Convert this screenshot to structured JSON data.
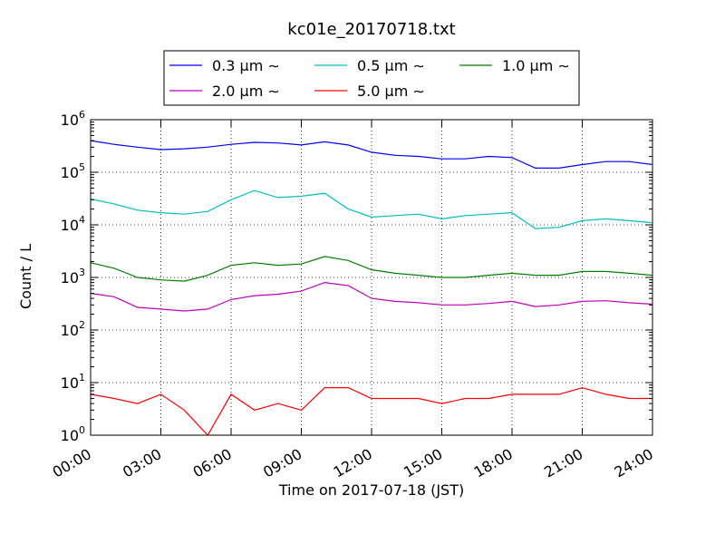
{
  "chart_data": {
    "type": "line",
    "title": "kc01e_20170718.txt",
    "xlabel": "Time on 2017-07-18 (JST)",
    "ylabel": "Count / L",
    "yscale": "log",
    "ylim": [
      1,
      1000000
    ],
    "xlim": [
      "2017-07-18 00:00",
      "2017-07-19 00:00"
    ],
    "grid": true,
    "legend_placement": "top (above plot), 3 columns",
    "x_tick_labels": [
      "00:00",
      "03:00",
      "06:00",
      "09:00",
      "12:00",
      "15:00",
      "18:00",
      "21:00",
      "24:00"
    ],
    "y_tick_labels": [
      {
        "base": "10",
        "exp": "0"
      },
      {
        "base": "10",
        "exp": "1"
      },
      {
        "base": "10",
        "exp": "2"
      },
      {
        "base": "10",
        "exp": "3"
      },
      {
        "base": "10",
        "exp": "4"
      },
      {
        "base": "10",
        "exp": "5"
      },
      {
        "base": "10",
        "exp": "6"
      }
    ],
    "x_hours": [
      0,
      1,
      2,
      3,
      4,
      5,
      6,
      7,
      8,
      9,
      10,
      11,
      12,
      13,
      14,
      15,
      16,
      17,
      18,
      19,
      20,
      21,
      22,
      23,
      24
    ],
    "series": [
      {
        "name": "0.3 μm ∼",
        "color": "#0000ff",
        "values": [
          400000,
          340000,
          300000,
          270000,
          280000,
          300000,
          340000,
          370000,
          360000,
          330000,
          380000,
          330000,
          240000,
          210000,
          200000,
          180000,
          180000,
          200000,
          190000,
          120000,
          120000,
          140000,
          160000,
          160000,
          140000
        ]
      },
      {
        "name": "0.5 μm ∼",
        "color": "#00bfbf",
        "values": [
          31000,
          25000,
          19000,
          17000,
          16000,
          18000,
          30000,
          45000,
          33000,
          35000,
          40000,
          20000,
          14000,
          15000,
          16000,
          13000,
          15000,
          16000,
          17000,
          8500,
          9000,
          12000,
          13000,
          12000,
          11000
        ]
      },
      {
        "name": "1.0 μm ∼",
        "color": "#008000",
        "values": [
          1900,
          1500,
          1000,
          900,
          850,
          1100,
          1700,
          1900,
          1700,
          1800,
          2500,
          2100,
          1400,
          1200,
          1100,
          1000,
          1000,
          1100,
          1200,
          1100,
          1100,
          1300,
          1300,
          1200,
          1100
        ]
      },
      {
        "name": "2.0 μm ∼",
        "color": "#bf00bf",
        "values": [
          500,
          430,
          270,
          250,
          230,
          250,
          380,
          450,
          480,
          550,
          800,
          700,
          400,
          350,
          330,
          300,
          300,
          320,
          350,
          280,
          300,
          350,
          360,
          330,
          310
        ]
      },
      {
        "name": "5.0 μm ∼",
        "color": "#ff0000",
        "values": [
          6,
          5,
          4,
          6,
          3,
          1,
          6,
          3,
          4,
          3,
          8,
          8,
          5,
          5,
          5,
          4,
          5,
          5,
          6,
          6,
          6,
          8,
          6,
          5,
          5
        ]
      }
    ]
  }
}
